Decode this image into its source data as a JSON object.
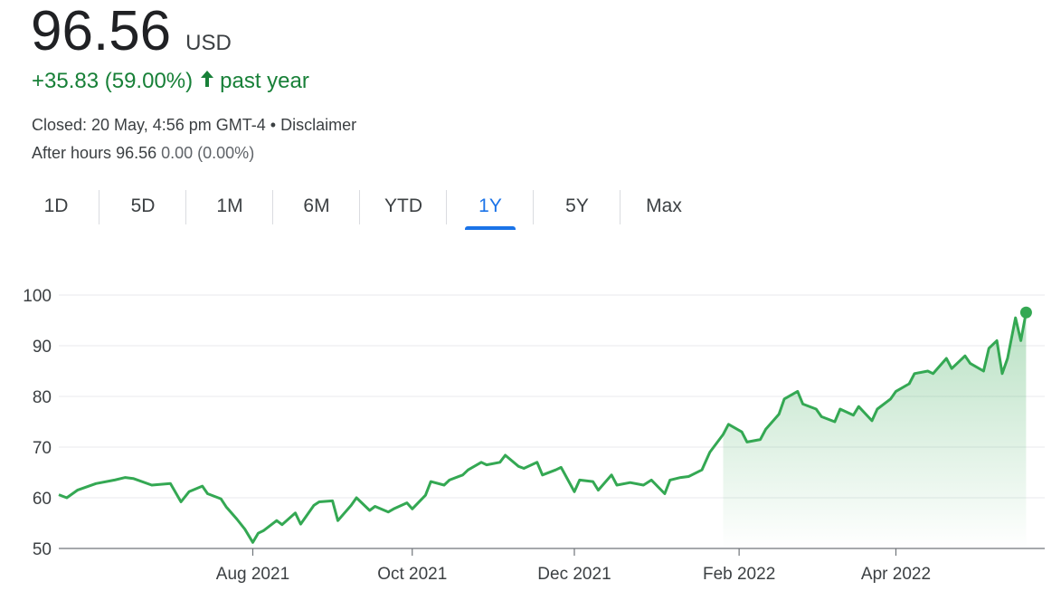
{
  "quote": {
    "price": "96.56",
    "currency": "USD",
    "change": "+35.83 (59.00%)",
    "arrow": "🡑",
    "period": "past year",
    "closed": "Closed: 20 May, 4:56 pm GMT-4",
    "separator": "•",
    "disclaimer": "Disclaimer",
    "after_hours_label": "After hours",
    "after_hours_price": "96.56",
    "after_hours_change": "0.00 (0.00%)"
  },
  "tabs": [
    {
      "label": "1D"
    },
    {
      "label": "5D"
    },
    {
      "label": "1M"
    },
    {
      "label": "6M"
    },
    {
      "label": "YTD"
    },
    {
      "label": "1Y",
      "active": true
    },
    {
      "label": "5Y"
    },
    {
      "label": "Max"
    }
  ],
  "colors": {
    "line": "#34a853",
    "positive": "#188038",
    "accent": "#1a73e8",
    "grid": "#e8eaed",
    "axis": "#5f6368"
  },
  "chart_data": {
    "type": "area",
    "title": "",
    "xlabel": "",
    "ylabel": "",
    "ylim": [
      50,
      100
    ],
    "yticks": [
      100,
      90,
      80,
      70,
      60,
      50
    ],
    "xticks": [
      {
        "label": "Aug 2021",
        "x": "2021-08-02"
      },
      {
        "label": "Oct 2021",
        "x": "2021-10-01"
      },
      {
        "label": "Dec 2021",
        "x": "2021-12-01"
      },
      {
        "label": "Feb 2022",
        "x": "2022-02-01"
      },
      {
        "label": "Apr 2022",
        "x": "2022-04-01"
      }
    ],
    "xlim": [
      "2021-05-21",
      "2022-05-27"
    ],
    "grid": true,
    "series": [
      {
        "x": [
          "2021-05-21",
          "2021-05-24",
          "2021-05-28",
          "2021-06-04",
          "2021-06-11",
          "2021-06-15",
          "2021-06-18",
          "2021-06-25",
          "2021-07-02",
          "2021-07-06",
          "2021-07-09",
          "2021-07-14",
          "2021-07-16",
          "2021-07-21",
          "2021-07-23",
          "2021-07-27",
          "2021-07-30",
          "2021-08-02",
          "2021-08-04",
          "2021-08-06",
          "2021-08-11",
          "2021-08-13",
          "2021-08-18",
          "2021-08-20",
          "2021-08-25",
          "2021-08-27",
          "2021-09-01",
          "2021-09-03",
          "2021-09-08",
          "2021-09-10",
          "2021-09-15",
          "2021-09-17",
          "2021-09-22",
          "2021-09-24",
          "2021-09-29",
          "2021-10-01",
          "2021-10-06",
          "2021-10-08",
          "2021-10-13",
          "2021-10-15",
          "2021-10-20",
          "2021-10-22",
          "2021-10-27",
          "2021-10-29",
          "2021-11-03",
          "2021-11-05",
          "2021-11-10",
          "2021-11-12",
          "2021-11-17",
          "2021-11-19",
          "2021-11-24",
          "2021-11-26",
          "2021-12-01",
          "2021-12-03",
          "2021-12-08",
          "2021-12-10",
          "2021-12-15",
          "2021-12-17",
          "2021-12-22",
          "2021-12-27",
          "2021-12-30",
          "2022-01-04",
          "2022-01-06",
          "2022-01-10",
          "2022-01-13",
          "2022-01-18",
          "2022-01-21",
          "2022-01-26",
          "2022-01-28",
          "2022-02-02",
          "2022-02-04",
          "2022-02-09",
          "2022-02-11",
          "2022-02-16",
          "2022-02-18",
          "2022-02-23",
          "2022-02-25",
          "2022-03-02",
          "2022-03-04",
          "2022-03-09",
          "2022-03-11",
          "2022-03-16",
          "2022-03-18",
          "2022-03-23",
          "2022-03-25",
          "2022-03-30",
          "2022-04-01",
          "2022-04-06",
          "2022-04-08",
          "2022-04-13",
          "2022-04-15",
          "2022-04-20",
          "2022-04-22",
          "2022-04-27",
          "2022-04-29",
          "2022-05-04",
          "2022-05-06",
          "2022-05-09",
          "2022-05-11",
          "2022-05-13",
          "2022-05-16",
          "2022-05-18",
          "2022-05-20"
        ],
        "values": [
          60.6,
          60,
          61.5,
          62.8,
          63.5,
          64,
          63.8,
          62.5,
          62.8,
          59.2,
          61.2,
          62.3,
          60.8,
          59.8,
          58.2,
          55.8,
          53.8,
          51.2,
          53,
          53.5,
          55.5,
          54.7,
          57,
          54.8,
          58.5,
          59.2,
          59.4,
          55.5,
          58.5,
          60,
          57.5,
          58.3,
          57.2,
          57.8,
          59,
          57.8,
          60.5,
          63.2,
          62.5,
          63.5,
          64.5,
          65.5,
          67,
          66.5,
          67,
          68.4,
          66.2,
          65.8,
          67,
          64.5,
          65.5,
          66,
          61.2,
          63.5,
          63.2,
          61.5,
          64.5,
          62.5,
          63,
          62.5,
          63.5,
          60.8,
          63.5,
          64,
          64.2,
          65.5,
          69,
          72.5,
          74.5,
          73,
          71,
          71.5,
          73.5,
          76.5,
          79.5,
          81,
          78.5,
          77.5,
          76,
          75,
          77.5,
          76.3,
          78,
          75.2,
          77.5,
          79.5,
          81,
          82.5,
          84.5,
          85,
          84.5,
          87.5,
          85.5,
          88,
          86.5,
          85,
          89.5,
          91,
          84.5,
          87.5,
          95.5,
          91,
          96.56
        ]
      }
    ],
    "last_value": 96.56
  }
}
